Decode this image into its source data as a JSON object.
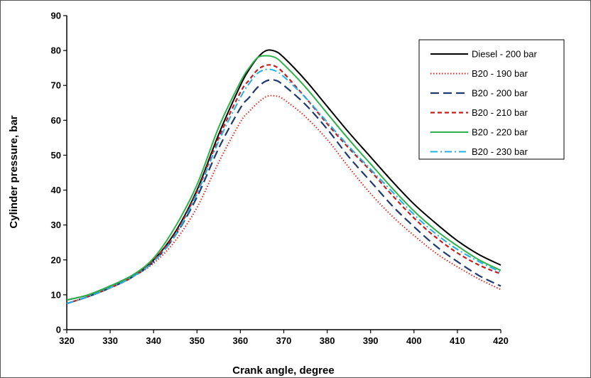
{
  "chart_data": {
    "type": "line",
    "title": "",
    "xlabel": "Crank angle, degree",
    "ylabel": "Cylinder pressure, bar",
    "xlim": [
      320,
      420
    ],
    "ylim": [
      0,
      90
    ],
    "xticks": [
      320,
      330,
      340,
      350,
      360,
      370,
      380,
      390,
      400,
      410,
      420
    ],
    "yticks": [
      0,
      10,
      20,
      30,
      40,
      50,
      60,
      70,
      80,
      90
    ],
    "grid": false,
    "legend_position": "top-right",
    "x": [
      320,
      325,
      330,
      335,
      340,
      345,
      350,
      355,
      360,
      362,
      364,
      366,
      368,
      370,
      375,
      380,
      385,
      390,
      395,
      400,
      405,
      410,
      415,
      420
    ],
    "series": [
      {
        "name": "Diesel - 200 bar",
        "color": "#000000",
        "dash": "solid",
        "values": [
          8.5,
          10,
          12.5,
          15.5,
          20,
          28,
          40,
          56,
          70,
          74.5,
          78,
          80,
          79.8,
          78,
          71.5,
          64,
          56.5,
          49.5,
          42.5,
          36,
          30.5,
          25.5,
          21.5,
          18.5
        ]
      },
      {
        "name": "B20 - 190 bar",
        "color": "#e8231b",
        "dash": "dotted",
        "values": [
          7.5,
          9.5,
          12,
          15,
          19,
          25.5,
          35,
          48,
          59.5,
          62.5,
          65,
          66.8,
          67,
          66,
          61,
          54.5,
          46.5,
          39,
          32.5,
          27,
          22,
          18,
          14.5,
          11.5
        ]
      },
      {
        "name": "B20 - 200 bar",
        "color": "#1f3a6e",
        "dash": "longdash",
        "values": [
          7.5,
          9.5,
          12,
          15,
          19.5,
          27,
          38,
          52,
          63.5,
          66.5,
          69.5,
          71.3,
          71.5,
          70,
          64.5,
          57.5,
          49.5,
          42.5,
          35.5,
          29.5,
          24,
          19.5,
          15.5,
          12.5
        ]
      },
      {
        "name": "B20 - 210 bar",
        "color": "#c41e1e",
        "dash": "shortdash",
        "values": [
          7.5,
          9.5,
          12,
          15,
          20,
          27.5,
          39.5,
          55,
          68,
          71.5,
          74.5,
          75.8,
          75.5,
          73.5,
          66.5,
          59,
          52,
          45.5,
          38.5,
          32,
          26.5,
          22,
          18.5,
          16
        ]
      },
      {
        "name": "B20 - 220 bar",
        "color": "#2db24a",
        "dash": "solid",
        "values": [
          8.5,
          10,
          12.5,
          15.5,
          20.5,
          29.5,
          41.5,
          58,
          71,
          75,
          78,
          78.5,
          78,
          76,
          69.5,
          62,
          54.5,
          47.5,
          40.5,
          34,
          28.5,
          24,
          20,
          17
        ]
      },
      {
        "name": "B20 - 230 bar",
        "color": "#1fb0e6",
        "dash": "dashdot",
        "values": [
          7.5,
          9.5,
          12,
          15,
          19.5,
          27,
          39,
          54,
          66.5,
          70.5,
          73.5,
          74.6,
          74.2,
          72.5,
          66.5,
          59.5,
          52.5,
          46,
          39.5,
          33,
          27.5,
          23,
          19.5,
          16.5
        ]
      }
    ]
  }
}
